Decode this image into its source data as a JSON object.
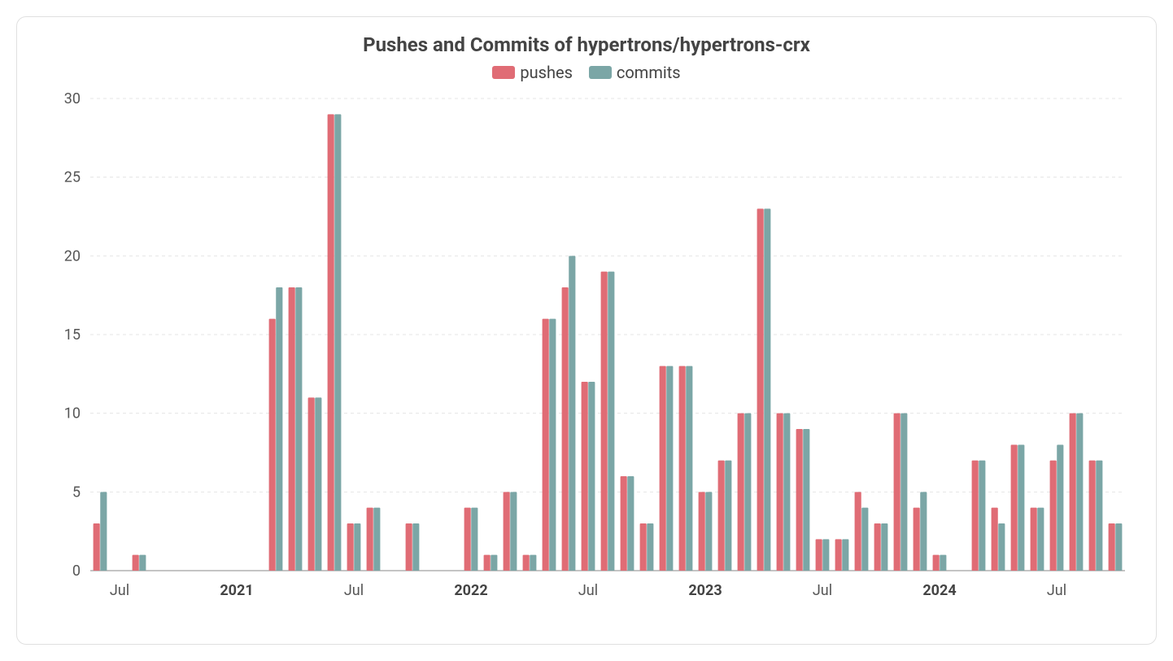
{
  "chart": {
    "type": "bar",
    "title": "Pushes and Commits of hypertrons/hypertrons-crx",
    "title_fontsize": 24,
    "background_color": "#ffffff",
    "border_color": "#e0e0e0",
    "grid_color": "#e5e5e5",
    "text_color": "#444444",
    "series": [
      {
        "name": "pushes",
        "color": "#e06c75"
      },
      {
        "name": "commits",
        "color": "#7ba6a6"
      }
    ],
    "legend": {
      "position": "top-center"
    },
    "y_axis": {
      "min": 0,
      "max": 30,
      "tick_step": 5,
      "ticks": [
        0,
        5,
        10,
        15,
        20,
        25,
        30
      ],
      "label_fontsize": 18
    },
    "x_axis": {
      "labels": [
        {
          "pos": "2020-07",
          "text": "Jul",
          "bold": false
        },
        {
          "pos": "2021-01",
          "text": "2021",
          "bold": true
        },
        {
          "pos": "2021-07",
          "text": "Jul",
          "bold": false
        },
        {
          "pos": "2022-01",
          "text": "2022",
          "bold": true
        },
        {
          "pos": "2022-07",
          "text": "Jul",
          "bold": false
        },
        {
          "pos": "2023-01",
          "text": "2023",
          "bold": true
        },
        {
          "pos": "2023-07",
          "text": "Jul",
          "bold": false
        },
        {
          "pos": "2024-01",
          "text": "2024",
          "bold": true
        },
        {
          "pos": "2024-07",
          "text": "Jul",
          "bold": false
        }
      ],
      "label_fontsize": 18
    },
    "months": [
      "2020-06",
      "2020-07",
      "2020-08",
      "2020-09",
      "2020-10",
      "2020-11",
      "2020-12",
      "2021-01",
      "2021-02",
      "2021-03",
      "2021-04",
      "2021-05",
      "2021-06",
      "2021-07",
      "2021-08",
      "2021-09",
      "2021-10",
      "2021-11",
      "2021-12",
      "2022-01",
      "2022-02",
      "2022-03",
      "2022-04",
      "2022-05",
      "2022-06",
      "2022-07",
      "2022-08",
      "2022-09",
      "2022-10",
      "2022-11",
      "2022-12",
      "2023-01",
      "2023-02",
      "2023-03",
      "2023-04",
      "2023-05",
      "2023-06",
      "2023-07",
      "2023-08",
      "2023-09",
      "2023-10",
      "2023-11",
      "2023-12",
      "2024-01",
      "2024-02",
      "2024-03",
      "2024-04",
      "2024-05",
      "2024-06",
      "2024-07",
      "2024-08",
      "2024-09",
      "2024-10"
    ],
    "data": {
      "pushes": [
        3,
        0,
        1,
        0,
        0,
        0,
        0,
        0,
        0,
        16,
        18,
        11,
        29,
        3,
        4,
        0,
        3,
        0,
        0,
        4,
        1,
        5,
        1,
        16,
        18,
        12,
        19,
        6,
        3,
        13,
        13,
        5,
        7,
        10,
        23,
        10,
        9,
        2,
        2,
        5,
        3,
        10,
        4,
        1,
        0,
        7,
        4,
        8,
        4,
        7,
        10,
        7,
        3
      ],
      "commits": [
        5,
        0,
        1,
        0,
        0,
        0,
        0,
        0,
        0,
        18,
        18,
        11,
        29,
        3,
        4,
        0,
        3,
        0,
        0,
        4,
        1,
        5,
        1,
        16,
        20,
        12,
        19,
        6,
        3,
        13,
        13,
        5,
        7,
        10,
        23,
        10,
        9,
        2,
        2,
        4,
        3,
        10,
        5,
        1,
        0,
        7,
        3,
        8,
        4,
        8,
        10,
        7,
        3
      ]
    },
    "bar_group_width": 0.7,
    "bar_gap": 0.02
  }
}
